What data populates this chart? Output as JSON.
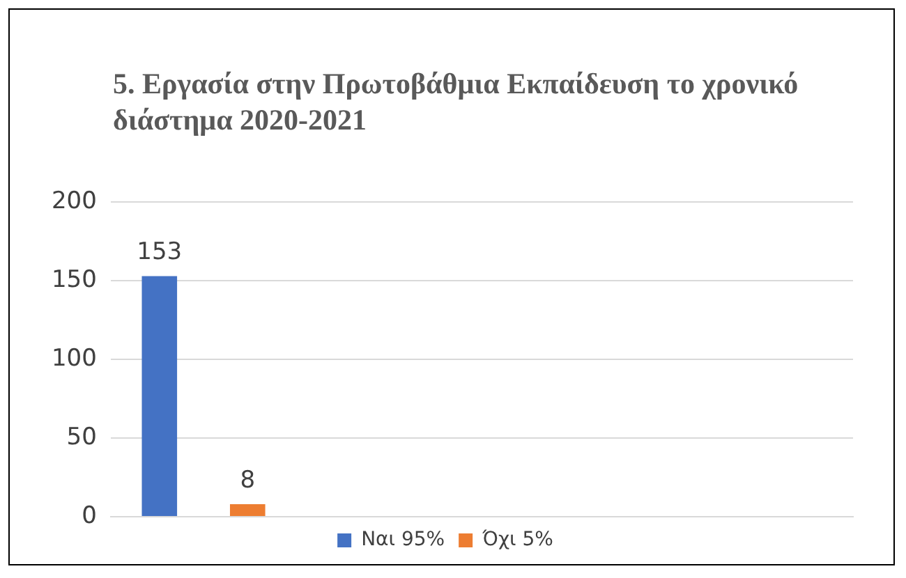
{
  "chart_data": {
    "type": "bar",
    "title": "5. Εργασία στην Πρωτοβάθμια Εκπαίδευση το χρονικό διάστημα 2020-2021",
    "categories": [
      null,
      null,
      null,
      null
    ],
    "series": [
      {
        "name": "Ναι 95%",
        "color": "#4472c4",
        "values": [
          153,
          null,
          null,
          null
        ]
      },
      {
        "name": "Όχι 5%",
        "color": "#ed7d31",
        "values": [
          8,
          null,
          null,
          null
        ]
      }
    ],
    "ylim": [
      0,
      200
    ],
    "yticks": [
      0,
      50,
      100,
      150,
      200
    ],
    "grid": "y",
    "legend": "bottom",
    "data_labels": true
  }
}
